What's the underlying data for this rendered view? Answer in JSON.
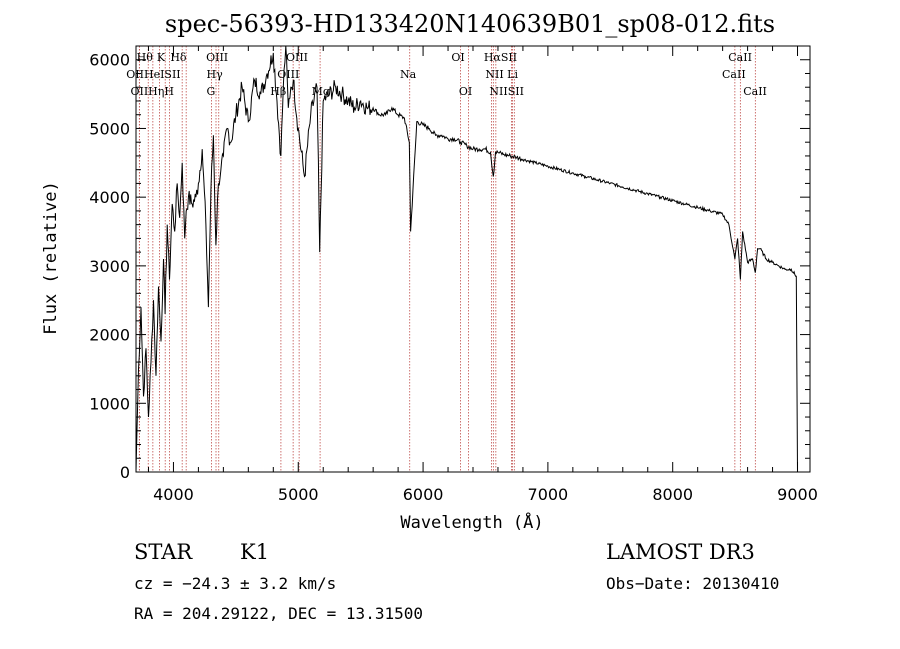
{
  "chart_data": {
    "type": "line",
    "title": "spec-56393-HD133420N140639B01_sp08-012.fits",
    "xlabel": "Wavelength (Å)",
    "ylabel": "Flux (relative)",
    "xlim": [
      3700,
      9100
    ],
    "ylim": [
      0,
      6200
    ],
    "xticks": [
      4000,
      5000,
      6000,
      7000,
      8000,
      9000
    ],
    "yticks": [
      0,
      1000,
      2000,
      3000,
      4000,
      5000,
      6000
    ],
    "series": [
      {
        "name": "flux",
        "x": [
          3700,
          3720,
          3740,
          3760,
          3780,
          3800,
          3820,
          3840,
          3860,
          3880,
          3900,
          3920,
          3933,
          3950,
          3968,
          3990,
          4010,
          4030,
          4050,
          4070,
          4090,
          4102,
          4120,
          4150,
          4180,
          4200,
          4230,
          4260,
          4280,
          4300,
          4320,
          4340,
          4360,
          4380,
          4400,
          4430,
          4460,
          4500,
          4550,
          4600,
          4650,
          4700,
          4750,
          4800,
          4830,
          4861,
          4880,
          4900,
          4920,
          4940,
          4960,
          5000,
          5050,
          5100,
          5150,
          5172,
          5200,
          5250,
          5300,
          5350,
          5400,
          5450,
          5500,
          5550,
          5600,
          5650,
          5700,
          5750,
          5800,
          5850,
          5890,
          5900,
          5950,
          6000,
          6050,
          6100,
          6150,
          6200,
          6250,
          6300,
          6350,
          6400,
          6450,
          6500,
          6540,
          6563,
          6580,
          6600,
          6650,
          6700,
          6750,
          6800,
          6900,
          7000,
          7100,
          7200,
          7300,
          7400,
          7500,
          7600,
          7700,
          7800,
          7900,
          8000,
          8100,
          8200,
          8300,
          8400,
          8450,
          8498,
          8520,
          8542,
          8560,
          8600,
          8640,
          8662,
          8680,
          8700,
          8750,
          8800,
          8850,
          8900,
          8950,
          8990,
          9000
        ],
        "y": [
          0,
          1500,
          2400,
          1100,
          1800,
          800,
          1600,
          2500,
          1400,
          2700,
          1900,
          3100,
          2300,
          3600,
          2800,
          3900,
          3500,
          4200,
          3700,
          4500,
          3400,
          3800,
          4000,
          3900,
          4000,
          4200,
          4700,
          3600,
          2400,
          4100,
          4900,
          3300,
          4200,
          4400,
          4600,
          5000,
          4800,
          5200,
          5600,
          5100,
          5700,
          5500,
          5800,
          6100,
          5400,
          4600,
          5600,
          6200,
          5300,
          5600,
          5700,
          5000,
          4300,
          5200,
          5600,
          3200,
          5400,
          5500,
          5600,
          5500,
          5400,
          5300,
          5400,
          5300,
          5300,
          5200,
          5200,
          5300,
          5200,
          5150,
          4800,
          3500,
          5100,
          5050,
          5000,
          4900,
          4900,
          4850,
          4850,
          4800,
          4750,
          4700,
          4700,
          4700,
          4650,
          4300,
          4650,
          4650,
          4620,
          4600,
          4580,
          4550,
          4500,
          4450,
          4400,
          4350,
          4300,
          4250,
          4200,
          4150,
          4100,
          4050,
          4000,
          3950,
          3900,
          3850,
          3800,
          3750,
          3600,
          3100,
          3400,
          2800,
          3500,
          3050,
          3100,
          2900,
          3250,
          3250,
          3100,
          3050,
          3000,
          2950,
          2950,
          2850,
          0
        ]
      }
    ],
    "lines": [
      {
        "name": "Hθ",
        "wl": 3798
      },
      {
        "name": "CaII K",
        "wl": 3934
      },
      {
        "name": "Hδ",
        "wl": 4102
      },
      {
        "name": "OII",
        "wl": 3727
      },
      {
        "name": "HeI",
        "wl": 3889
      },
      {
        "name": "SII",
        "wl": 4070
      },
      {
        "name": "OII",
        "wl": 3727
      },
      {
        "name": "Hη",
        "wl": 3835
      },
      {
        "name": "CaII H",
        "wl": 3968
      },
      {
        "name": "OIII",
        "wl": 4363
      },
      {
        "name": "Hγ",
        "wl": 4341
      },
      {
        "name": "G band",
        "wl": 4305
      },
      {
        "name": "Hβ",
        "wl": 4861
      },
      {
        "name": "OIII",
        "wl": 4959
      },
      {
        "name": "OIII",
        "wl": 5007
      },
      {
        "name": "Mg",
        "wl": 5175
      },
      {
        "name": "Na",
        "wl": 5893
      },
      {
        "name": "OI",
        "wl": 6300
      },
      {
        "name": "OI",
        "wl": 6364
      },
      {
        "name": "Hα",
        "wl": 6563
      },
      {
        "name": "NII",
        "wl": 6548
      },
      {
        "name": "NII",
        "wl": 6583
      },
      {
        "name": "SII",
        "wl": 6717
      },
      {
        "name": "SII",
        "wl": 6731
      },
      {
        "name": "Li",
        "wl": 6708
      },
      {
        "name": "CaII",
        "wl": 8498
      },
      {
        "name": "CaII",
        "wl": 8542
      },
      {
        "name": "CaII",
        "wl": 8662
      }
    ]
  },
  "line_labels": [
    {
      "text": "Hθ",
      "wl": 3770,
      "row": 0
    },
    {
      "text": "K",
      "wl": 3900,
      "row": 0
    },
    {
      "text": "Hδ",
      "wl": 4040,
      "row": 0
    },
    {
      "text": "OIII",
      "wl": 4350,
      "row": 0
    },
    {
      "text": "OIII",
      "wl": 4990,
      "row": 0
    },
    {
      "text": "OI",
      "wl": 6280,
      "row": 0
    },
    {
      "text": "HαSII",
      "wl": 6620,
      "row": 0
    },
    {
      "text": "CaII",
      "wl": 8540,
      "row": 0
    },
    {
      "text": "OIIHeISII",
      "wl": 3840,
      "row": 1
    },
    {
      "text": "Hγ",
      "wl": 4330,
      "row": 1
    },
    {
      "text": "OIII",
      "wl": 4920,
      "row": 1
    },
    {
      "text": "Na",
      "wl": 5880,
      "row": 1
    },
    {
      "text": "NII Li",
      "wl": 6630,
      "row": 1
    },
    {
      "text": "CaII",
      "wl": 8490,
      "row": 1
    },
    {
      "text": "OIIHηH",
      "wl": 3830,
      "row": 2
    },
    {
      "text": "G",
      "wl": 4300,
      "row": 2
    },
    {
      "text": "Hβ",
      "wl": 4840,
      "row": 2
    },
    {
      "text": "Mg",
      "wl": 5180,
      "row": 2
    },
    {
      "text": "OI",
      "wl": 6340,
      "row": 2
    },
    {
      "text": "NIISII",
      "wl": 6670,
      "row": 2
    },
    {
      "text": "CaII",
      "wl": 8660,
      "row": 2
    }
  ],
  "info": {
    "class_label": "STAR",
    "subclass": "K1",
    "survey": "LAMOST DR3",
    "cz": "cz = −24.3 ± 3.2 km/s",
    "obs_date": "Obs−Date: 20130410",
    "coords": "RA = 204.29122, DEC =  13.31500"
  },
  "colors": {
    "spectrum": "#000000",
    "marker_lines": "#c0504d"
  }
}
